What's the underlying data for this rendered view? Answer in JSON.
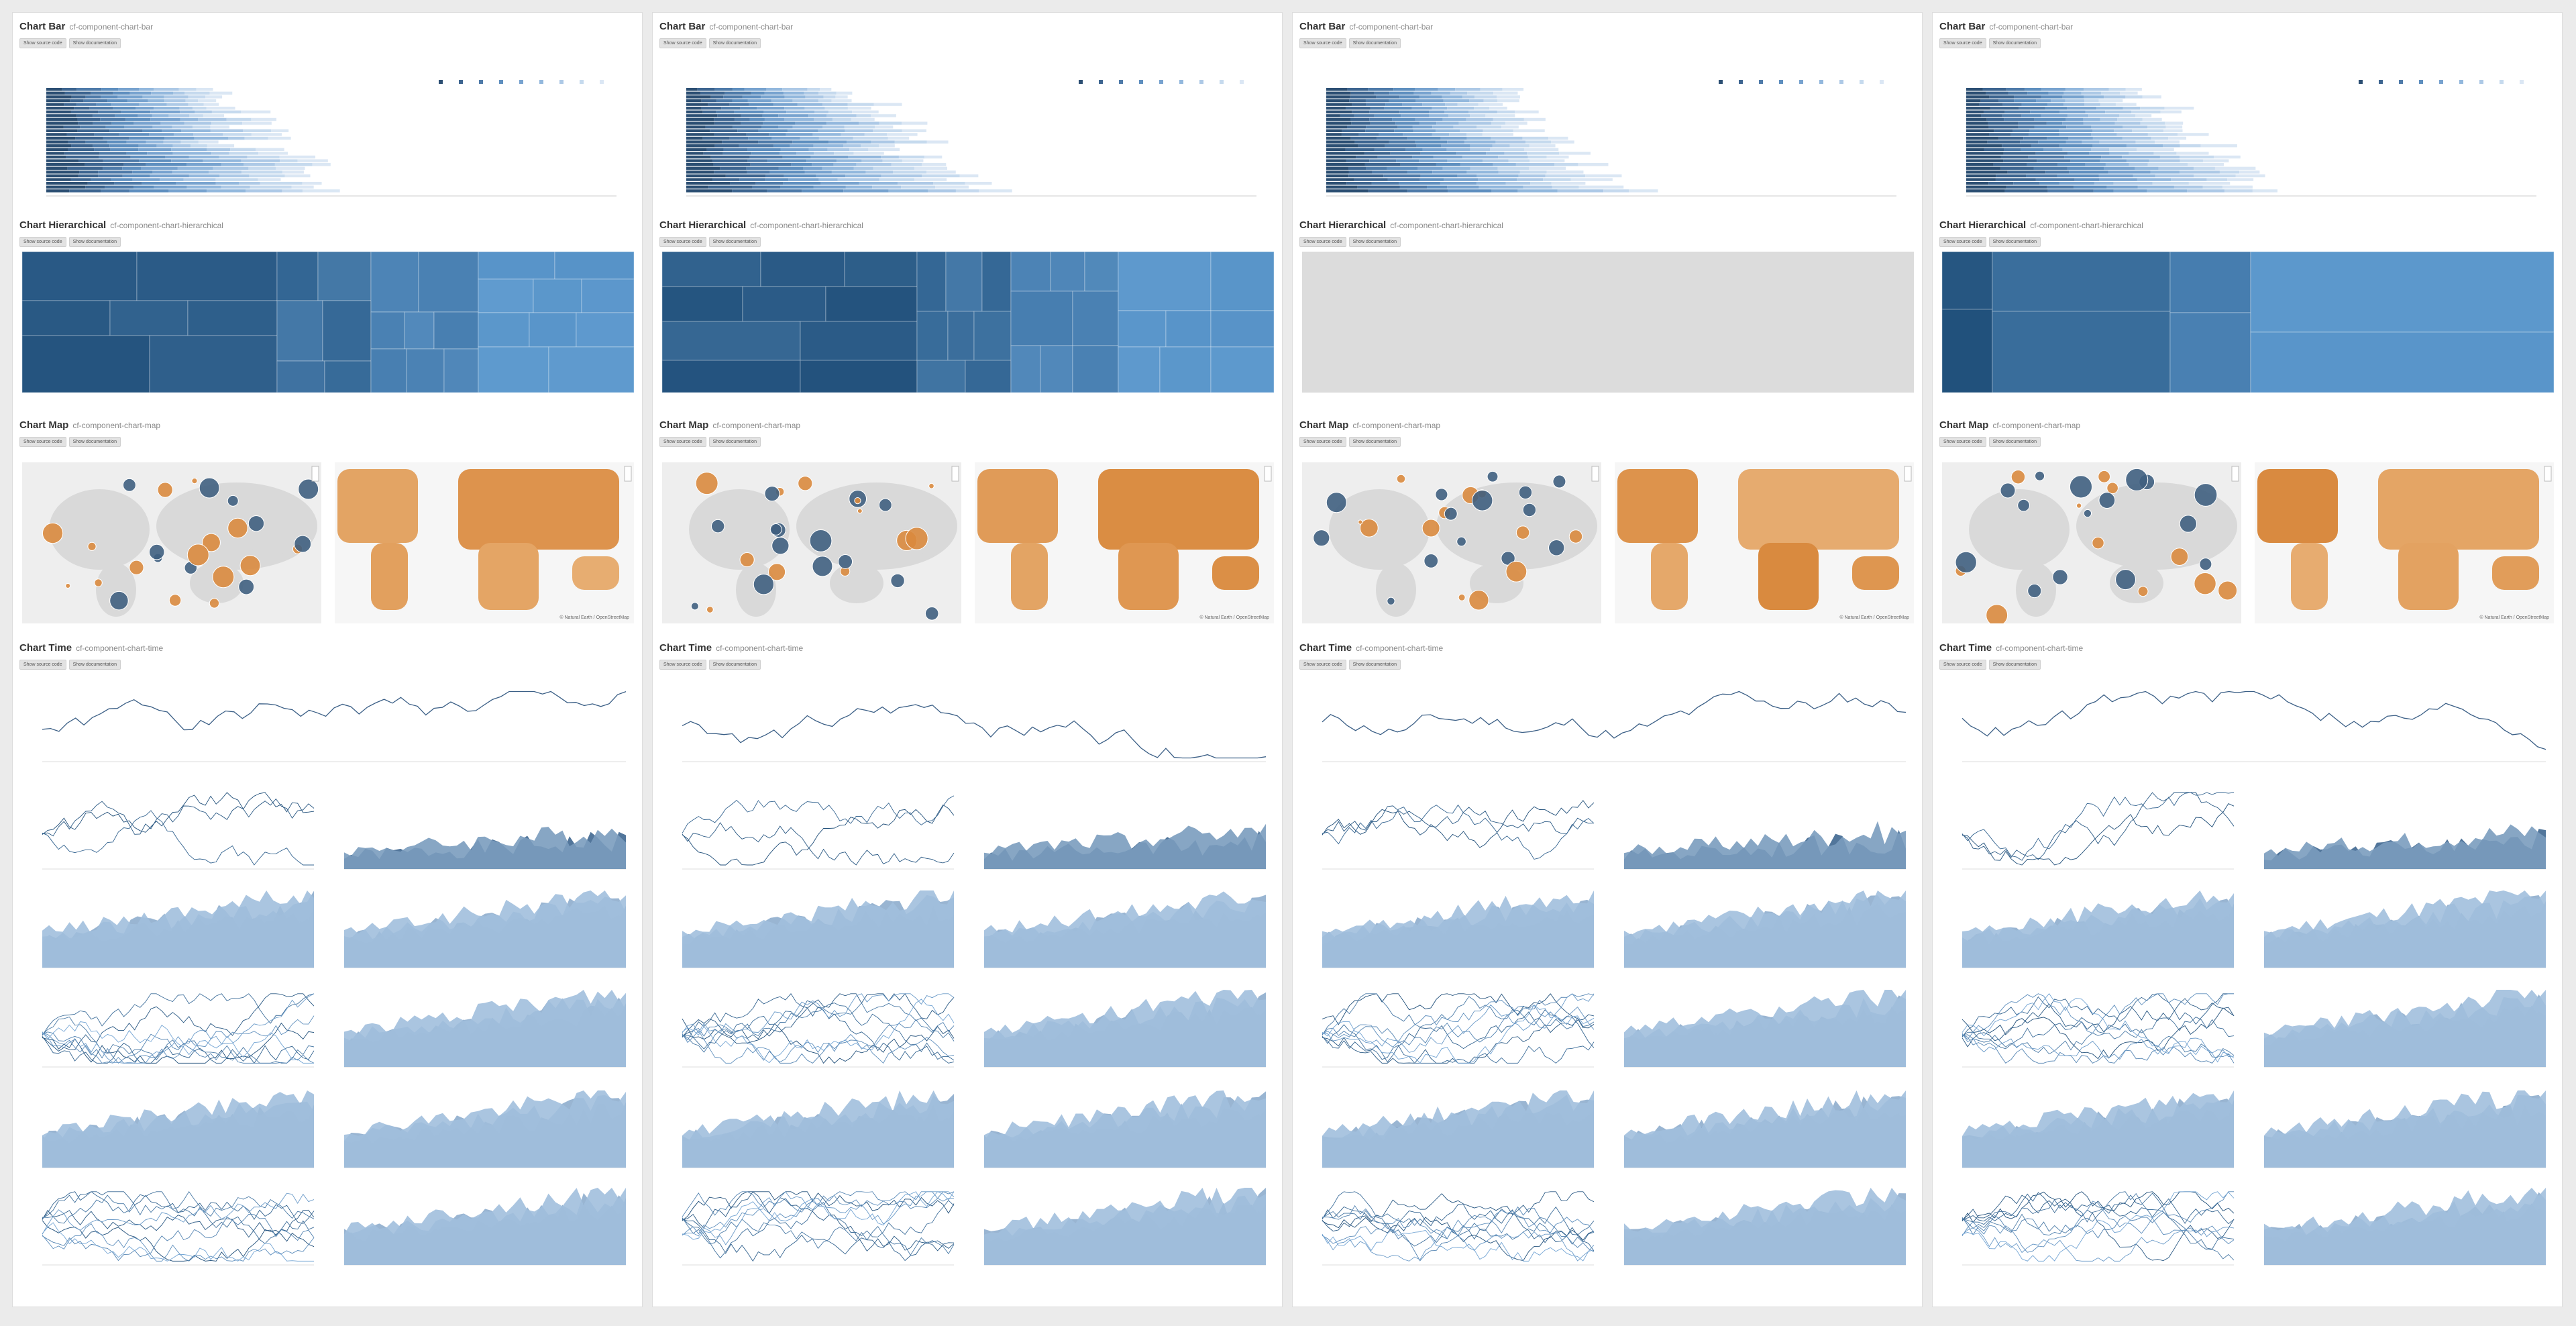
{
  "sections": [
    {
      "title": "Chart Bar",
      "tag": "cf-component-chart-bar"
    },
    {
      "title": "Chart Hierarchical",
      "tag": "cf-component-chart-hierarchical"
    },
    {
      "title": "Chart Map",
      "tag": "cf-component-chart-map"
    },
    {
      "title": "Chart Time",
      "tag": "cf-component-chart-time"
    }
  ],
  "buttons": {
    "source": "Show source code",
    "docs": "Show documentation"
  },
  "map": {
    "attribution": "© Natural Earth / OpenStreetMap"
  },
  "colors": {
    "page_bg": "#ebebeb",
    "panel_bg": "#ffffff",
    "blue_dark": "#1f4e79",
    "blue_mid": "#3a7bbf",
    "blue_light": "#bcd5ee",
    "orange": "#d9893e",
    "orange_light": "#f1c796",
    "grey_placeholder": "#dcdcdc"
  },
  "columns": [
    {
      "id": "col-1",
      "hier_variant": "full",
      "map_variant": "a"
    },
    {
      "id": "col-2",
      "hier_variant": "full-b",
      "map_variant": "b"
    },
    {
      "id": "col-3",
      "hier_variant": "empty",
      "map_variant": "c"
    },
    {
      "id": "col-4",
      "hier_variant": "simple",
      "map_variant": "d"
    }
  ]
}
